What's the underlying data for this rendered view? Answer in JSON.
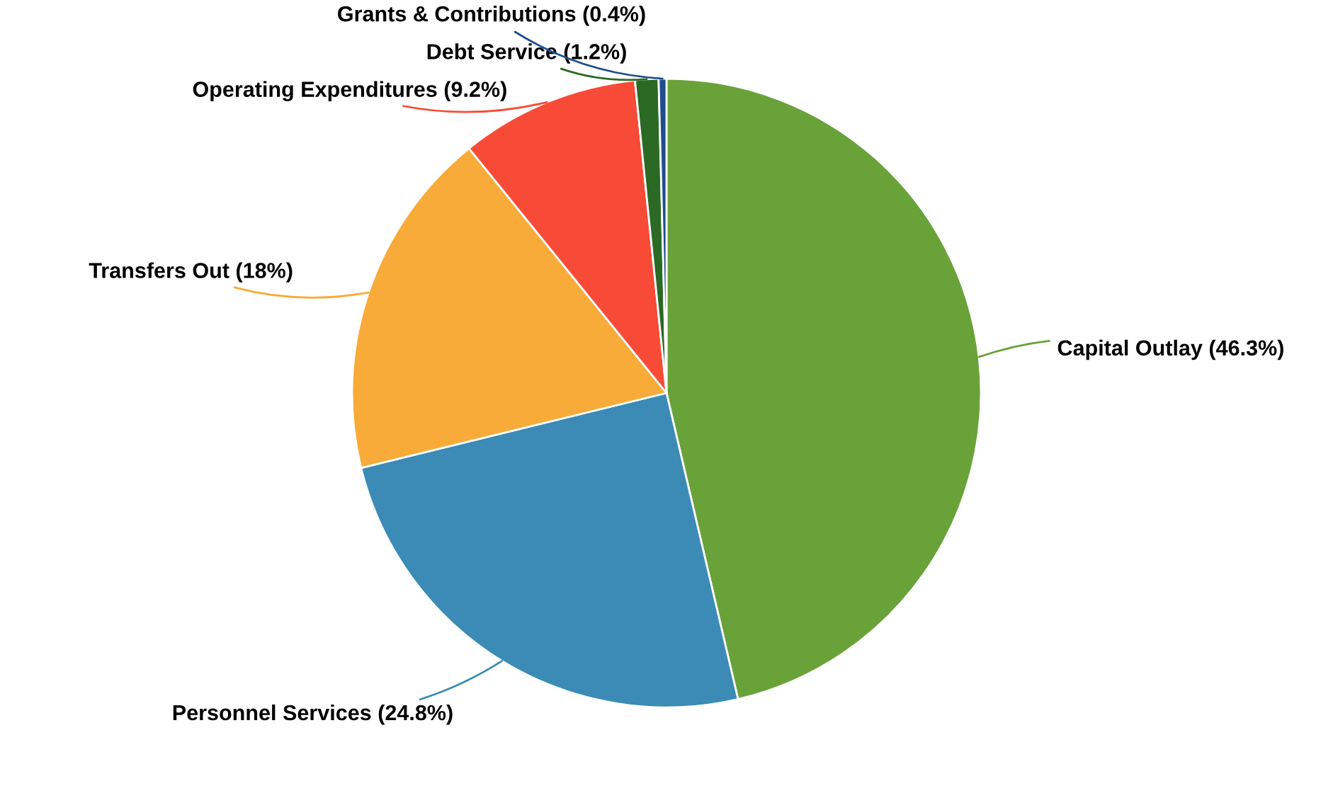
{
  "chart_data": {
    "type": "pie",
    "categories": [
      "Capital Outlay",
      "Personnel Services",
      "Transfers Out",
      "Operating Expenditures",
      "Debt Service",
      "Grants & Contributions"
    ],
    "values": [
      46.3,
      24.8,
      18,
      9.2,
      1.2,
      0.4
    ],
    "value_labels": [
      "(46.3%)",
      "(24.8%)",
      "(18%)",
      "(9.2%)",
      "(1.2%)",
      "(0.4%)"
    ],
    "colors": [
      "#6aa23a",
      "#3b8bb6",
      "#f8ab38",
      "#f84b37",
      "#2a6a24",
      "#1f4e8c"
    ]
  }
}
